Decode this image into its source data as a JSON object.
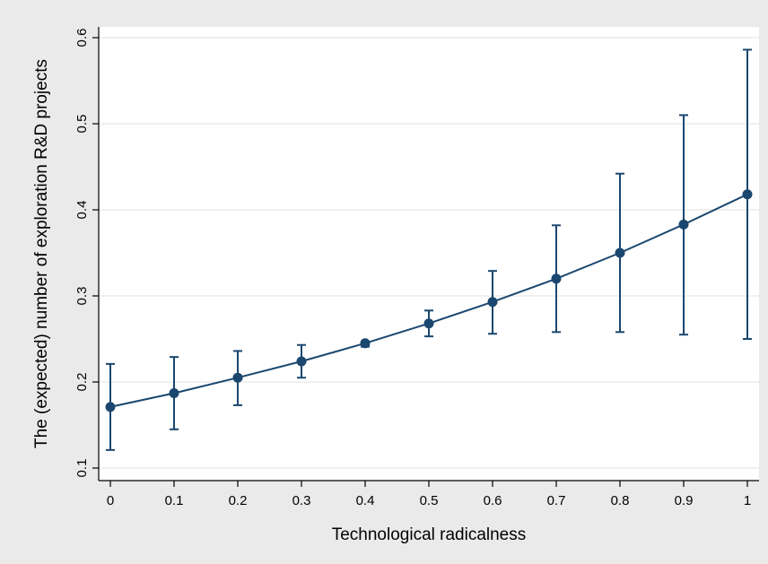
{
  "chart_data": {
    "type": "line",
    "title": "",
    "xlabel": "Technological radicalness",
    "ylabel": "The (expected) number of exploration R&D projects",
    "x": [
      0,
      0.1,
      0.2,
      0.3,
      0.4,
      0.5,
      0.6,
      0.7,
      0.8,
      0.9,
      1
    ],
    "x_tick_labels": [
      "0",
      "0.1",
      "0.2",
      "0.3",
      "0.4",
      "0.5",
      "0.6",
      "0.7",
      "0.8",
      "0.9",
      "1"
    ],
    "y_ticks": [
      0.1,
      0.2,
      0.3,
      0.4,
      0.5,
      0.6
    ],
    "y_tick_labels": [
      "0.1",
      "0.2",
      "0.3",
      "0.4",
      "0.5",
      "0.6"
    ],
    "xlim": [
      -0.03,
      1.02
    ],
    "ylim": [
      0.09,
      0.615
    ],
    "grid": true,
    "series": [
      {
        "values": [
          0.171,
          0.187,
          0.205,
          0.224,
          0.245,
          0.268,
          0.293,
          0.32,
          0.35,
          0.383,
          0.418
        ],
        "ci_lower": [
          0.121,
          0.145,
          0.173,
          0.205,
          0.241,
          0.253,
          0.256,
          0.258,
          0.258,
          0.255,
          0.25
        ],
        "ci_upper": [
          0.221,
          0.229,
          0.236,
          0.243,
          0.247,
          0.283,
          0.329,
          0.382,
          0.442,
          0.51,
          0.586
        ]
      }
    ],
    "colors": {
      "series": "#1a476f",
      "background": "#eaeaea",
      "plot_background": "#ffffff",
      "grid": "#e6e6e6",
      "axis": "#000000"
    }
  }
}
